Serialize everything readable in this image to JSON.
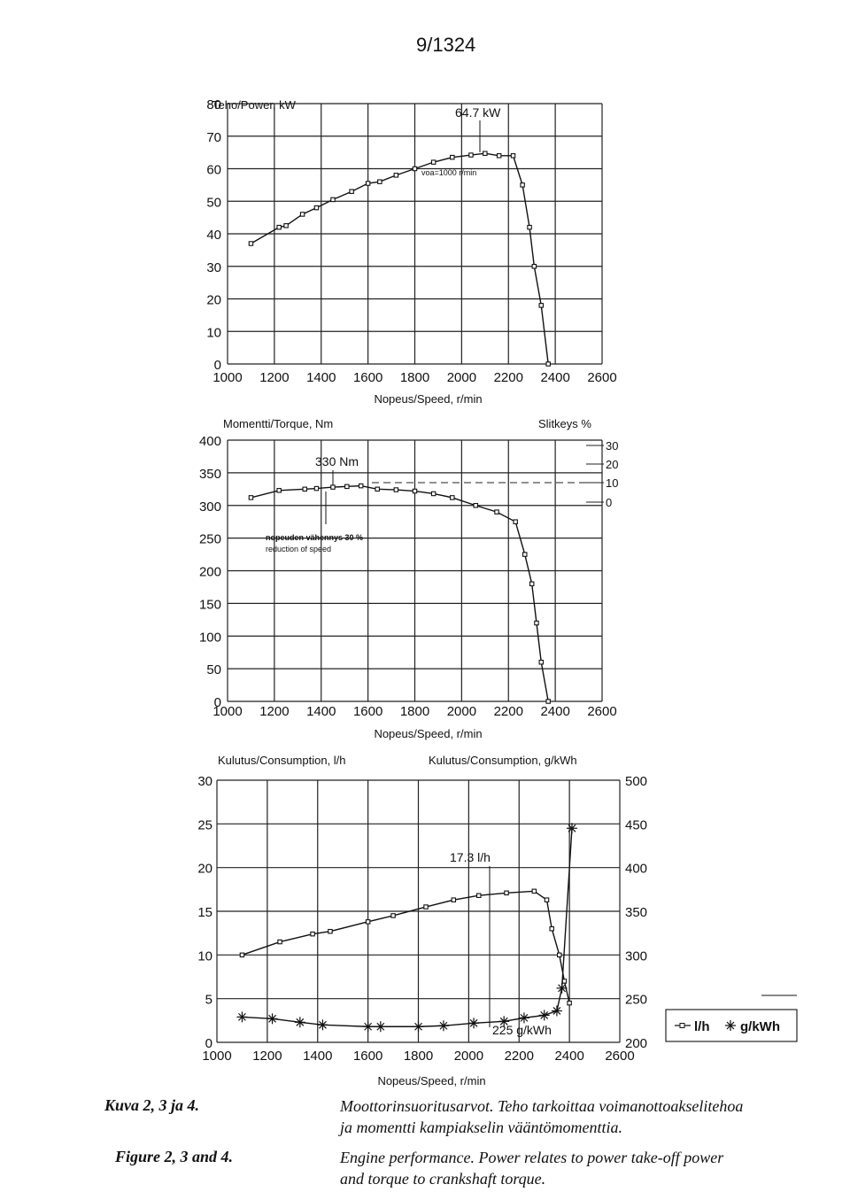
{
  "page_number": "9/1324",
  "captions": {
    "fi_label": "Kuva 2, 3 ja 4.",
    "en_label": "Figure 2, 3 and 4.",
    "fi_line1": "Moottorinsuoritusarvot. Teho tarkoittaa voimanottoakselitehoa",
    "fi_line2": "ja momentti kampiakselin vääntömomenttia.",
    "en_line1": "Engine performance. Power relates to power take-off power",
    "en_line2": "and torque to crankshaft torque."
  },
  "chart_data": [
    {
      "type": "line",
      "ylabel": "Teho/Power, kW",
      "xlabel": "Nopeus/Speed, r/min",
      "xlim": [
        1000,
        2600
      ],
      "ylim": [
        0,
        80
      ],
      "x_ticks": [
        "1000",
        "1200",
        "1400",
        "1600",
        "1800",
        "2000",
        "2200",
        "2400",
        "2600"
      ],
      "y_ticks": [
        "0",
        "10",
        "20",
        "30",
        "40",
        "50",
        "60",
        "70",
        "80"
      ],
      "annotations": [
        "64.7 kW",
        "voa=1000 r/min"
      ],
      "series": [
        {
          "x": [
            1100,
            1220,
            1250,
            1320,
            1380,
            1450,
            1530,
            1600,
            1650,
            1720,
            1800,
            1880,
            1960,
            2040,
            2100,
            2160,
            2220,
            2260,
            2290,
            2310,
            2340,
            2370
          ],
          "y": [
            37,
            42,
            42.5,
            46,
            48,
            50.5,
            53,
            55.5,
            56,
            58,
            60,
            62,
            63.5,
            64.2,
            64.7,
            64,
            64,
            55,
            42,
            30,
            18,
            0
          ]
        }
      ]
    },
    {
      "type": "line",
      "ylabel": "Momentti/Torque, Nm",
      "y2label": "Slitkeys %",
      "xlabel": "Nopeus/Speed, r/min",
      "xlim": [
        1000,
        2600
      ],
      "ylim": [
        0,
        400
      ],
      "x_ticks": [
        "1000",
        "1200",
        "1400",
        "1600",
        "1800",
        "2000",
        "2200",
        "2400",
        "2600"
      ],
      "y_ticks": [
        "0",
        "50",
        "100",
        "150",
        "200",
        "250",
        "300",
        "350",
        "400"
      ],
      "y2_ticks": [
        "0",
        "10",
        "20",
        "30"
      ],
      "annotations": [
        "330 Nm",
        "nopeuden vähennys 30 %",
        "reduction of speed"
      ],
      "series": [
        {
          "x": [
            1100,
            1220,
            1330,
            1380,
            1450,
            1510,
            1570,
            1640,
            1720,
            1800,
            1880,
            1960,
            2060,
            2150,
            2230,
            2270,
            2300,
            2320,
            2340,
            2370
          ],
          "y": [
            312,
            323,
            325,
            326,
            328,
            329,
            330,
            325,
            324,
            322,
            318,
            312,
            300,
            290,
            275,
            225,
            180,
            120,
            60,
            0
          ]
        }
      ]
    },
    {
      "type": "line",
      "ylabel": "Kulutus/Consumption, l/h",
      "y2label": "Kulutus/Consumption, g/kWh",
      "xlabel": "Nopeus/Speed, r/min",
      "xlim": [
        1000,
        2600
      ],
      "ylim": [
        0,
        30
      ],
      "y2lim": [
        200,
        500
      ],
      "x_ticks": [
        "1000",
        "1200",
        "1400",
        "1600",
        "1800",
        "2000",
        "2200",
        "2400",
        "2600"
      ],
      "y_ticks": [
        "0",
        "5",
        "10",
        "15",
        "20",
        "25",
        "30"
      ],
      "y2_ticks": [
        "200",
        "250",
        "300",
        "350",
        "400",
        "450",
        "500"
      ],
      "annotations": [
        "17.3 l/h",
        "225 g/kWh"
      ],
      "legend": [
        "l/h",
        "g/kWh"
      ],
      "legend_position": "right",
      "series": [
        {
          "name": "l/h",
          "x": [
            1100,
            1250,
            1380,
            1450,
            1600,
            1700,
            1830,
            1940,
            2040,
            2150,
            2260,
            2310,
            2330,
            2360,
            2380,
            2400
          ],
          "y": [
            10,
            11.5,
            12.4,
            12.7,
            13.8,
            14.5,
            15.5,
            16.3,
            16.8,
            17.1,
            17.3,
            16.3,
            13,
            10,
            7,
            4.5
          ]
        },
        {
          "name": "g/kWh",
          "x": [
            1100,
            1220,
            1330,
            1420,
            1600,
            1650,
            1800,
            1900,
            2020,
            2140,
            2220,
            2300,
            2350,
            2370,
            2410
          ],
          "y": [
            229,
            227,
            223,
            220,
            218,
            218,
            218,
            219,
            222,
            224,
            228,
            231,
            236,
            262,
            445
          ]
        }
      ]
    }
  ]
}
